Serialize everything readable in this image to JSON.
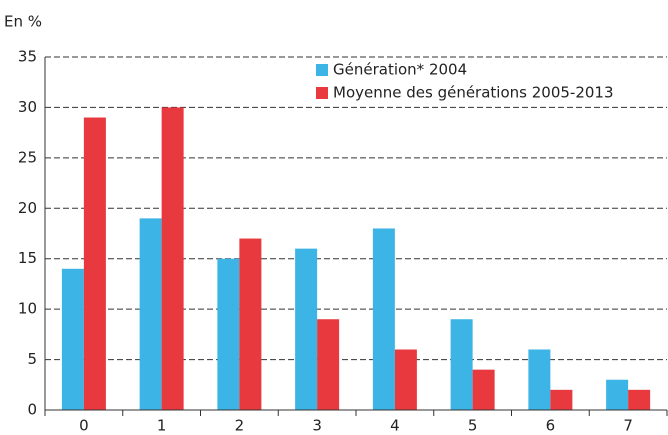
{
  "chart_data": {
    "type": "bar",
    "y_label": "En %",
    "categories": [
      "0",
      "1",
      "2",
      "3",
      "4",
      "5",
      "6",
      "7"
    ],
    "series": [
      {
        "name": "Génération* 2004",
        "color": "#3cb4e5",
        "values": [
          14,
          19,
          15,
          16,
          18,
          9,
          6,
          3
        ]
      },
      {
        "name": "Moyenne des générations 2005-2013",
        "color": "#e8393f",
        "values": [
          29,
          30,
          17,
          9,
          6,
          4,
          2,
          2
        ]
      }
    ],
    "ylim": [
      0,
      35
    ],
    "yticks": [
      0,
      5,
      10,
      15,
      20,
      25,
      30,
      35
    ],
    "grid": true
  }
}
